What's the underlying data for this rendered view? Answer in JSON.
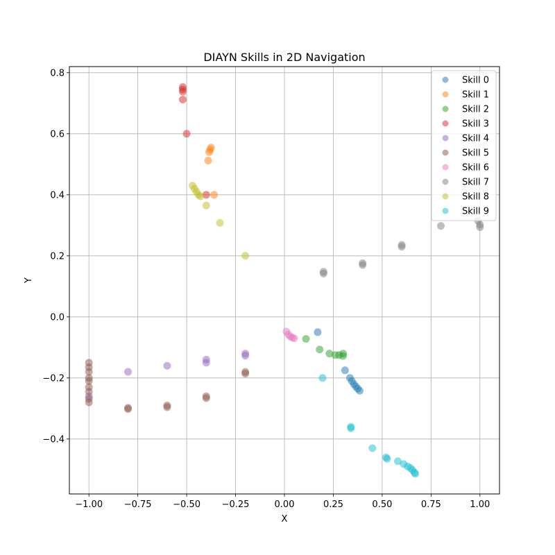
{
  "chart_data": {
    "type": "scatter",
    "title": "DIAYN Skills in 2D Navigation",
    "xlabel": "X",
    "ylabel": "Y",
    "xlim": [
      -1.1,
      1.1
    ],
    "ylim": [
      -0.58,
      0.82
    ],
    "xticks": [
      -1.0,
      -0.75,
      -0.5,
      -0.25,
      0.0,
      0.25,
      0.5,
      0.75,
      1.0
    ],
    "xtick_labels": [
      "−1.00",
      "−0.75",
      "−0.50",
      "−0.25",
      "0.00",
      "0.25",
      "0.50",
      "0.75",
      "1.00"
    ],
    "yticks": [
      -0.4,
      -0.2,
      0.0,
      0.2,
      0.4,
      0.6,
      0.8
    ],
    "ytick_labels": [
      "−0.4",
      "−0.2",
      "0.0",
      "0.2",
      "0.4",
      "0.6",
      "0.8"
    ],
    "grid": true,
    "legend_position": "top-right",
    "series": [
      {
        "name": "Skill 0",
        "color": "#1f77b4",
        "points": [
          [
            0.17,
            -0.05
          ],
          [
            0.31,
            -0.175
          ],
          [
            0.335,
            -0.2
          ],
          [
            0.345,
            -0.21
          ],
          [
            0.355,
            -0.22
          ],
          [
            0.365,
            -0.228
          ],
          [
            0.375,
            -0.235
          ],
          [
            0.385,
            -0.242
          ]
        ]
      },
      {
        "name": "Skill 1",
        "color": "#ff7f0e",
        "points": [
          [
            -0.375,
            0.555
          ],
          [
            -0.38,
            0.548
          ],
          [
            -0.385,
            0.54
          ],
          [
            -0.39,
            0.512
          ],
          [
            -0.36,
            0.4
          ]
        ]
      },
      {
        "name": "Skill 2",
        "color": "#2ca02c",
        "points": [
          [
            0.11,
            -0.072
          ],
          [
            0.18,
            -0.107
          ],
          [
            0.23,
            -0.12
          ],
          [
            0.26,
            -0.125
          ],
          [
            0.28,
            -0.125
          ],
          [
            0.3,
            -0.12
          ],
          [
            0.3,
            -0.128
          ]
        ]
      },
      {
        "name": "Skill 3",
        "color": "#d62728",
        "points": [
          [
            -0.52,
            0.753
          ],
          [
            -0.52,
            0.745
          ],
          [
            -0.52,
            0.738
          ],
          [
            -0.52,
            0.712
          ],
          [
            -0.5,
            0.6
          ],
          [
            -0.4,
            0.4
          ]
        ]
      },
      {
        "name": "Skill 4",
        "color": "#9467bd",
        "points": [
          [
            -1.0,
            -0.26
          ],
          [
            -0.8,
            -0.18
          ],
          [
            -0.6,
            -0.16
          ],
          [
            -0.4,
            -0.14
          ],
          [
            -0.4,
            -0.15
          ],
          [
            -0.2,
            -0.12
          ],
          [
            -0.2,
            -0.127
          ]
        ]
      },
      {
        "name": "Skill 5",
        "color": "#8c564b",
        "points": [
          [
            -1.0,
            -0.15
          ],
          [
            -1.0,
            -0.165
          ],
          [
            -1.0,
            -0.18
          ],
          [
            -1.0,
            -0.2
          ],
          [
            -1.0,
            -0.21
          ],
          [
            -1.0,
            -0.23
          ],
          [
            -1.0,
            -0.245
          ],
          [
            -1.0,
            -0.268
          ],
          [
            -1.0,
            -0.28
          ],
          [
            -0.8,
            -0.298
          ],
          [
            -0.8,
            -0.302
          ],
          [
            -0.6,
            -0.29
          ],
          [
            -0.6,
            -0.296
          ],
          [
            -0.4,
            -0.26
          ],
          [
            -0.4,
            -0.266
          ],
          [
            -0.2,
            -0.18
          ],
          [
            -0.2,
            -0.186
          ]
        ]
      },
      {
        "name": "Skill 6",
        "color": "#e377c2",
        "points": [
          [
            0.01,
            -0.048
          ],
          [
            0.02,
            -0.058
          ],
          [
            0.03,
            -0.064
          ],
          [
            0.04,
            -0.068
          ],
          [
            0.05,
            -0.07
          ]
        ]
      },
      {
        "name": "Skill 7",
        "color": "#7f7f7f",
        "points": [
          [
            0.2,
            0.142
          ],
          [
            0.2,
            0.148
          ],
          [
            0.4,
            0.17
          ],
          [
            0.4,
            0.176
          ],
          [
            0.6,
            0.23
          ],
          [
            0.6,
            0.236
          ],
          [
            0.8,
            0.298
          ],
          [
            0.99,
            0.315
          ],
          [
            1.0,
            0.302
          ],
          [
            1.0,
            0.294
          ]
        ]
      },
      {
        "name": "Skill 8",
        "color": "#bcbd22",
        "points": [
          [
            -0.47,
            0.43
          ],
          [
            -0.46,
            0.42
          ],
          [
            -0.45,
            0.41
          ],
          [
            -0.44,
            0.4
          ],
          [
            -0.43,
            0.395
          ],
          [
            -0.4,
            0.365
          ],
          [
            -0.33,
            0.308
          ],
          [
            -0.2,
            0.2
          ]
        ]
      },
      {
        "name": "Skill 9",
        "color": "#17becf",
        "points": [
          [
            0.195,
            -0.2
          ],
          [
            0.34,
            -0.36
          ],
          [
            0.34,
            -0.365
          ],
          [
            0.45,
            -0.43
          ],
          [
            0.52,
            -0.46
          ],
          [
            0.525,
            -0.465
          ],
          [
            0.58,
            -0.473
          ],
          [
            0.61,
            -0.482
          ],
          [
            0.63,
            -0.49
          ],
          [
            0.645,
            -0.495
          ],
          [
            0.655,
            -0.502
          ],
          [
            0.665,
            -0.51
          ],
          [
            0.67,
            -0.514
          ]
        ]
      }
    ]
  }
}
